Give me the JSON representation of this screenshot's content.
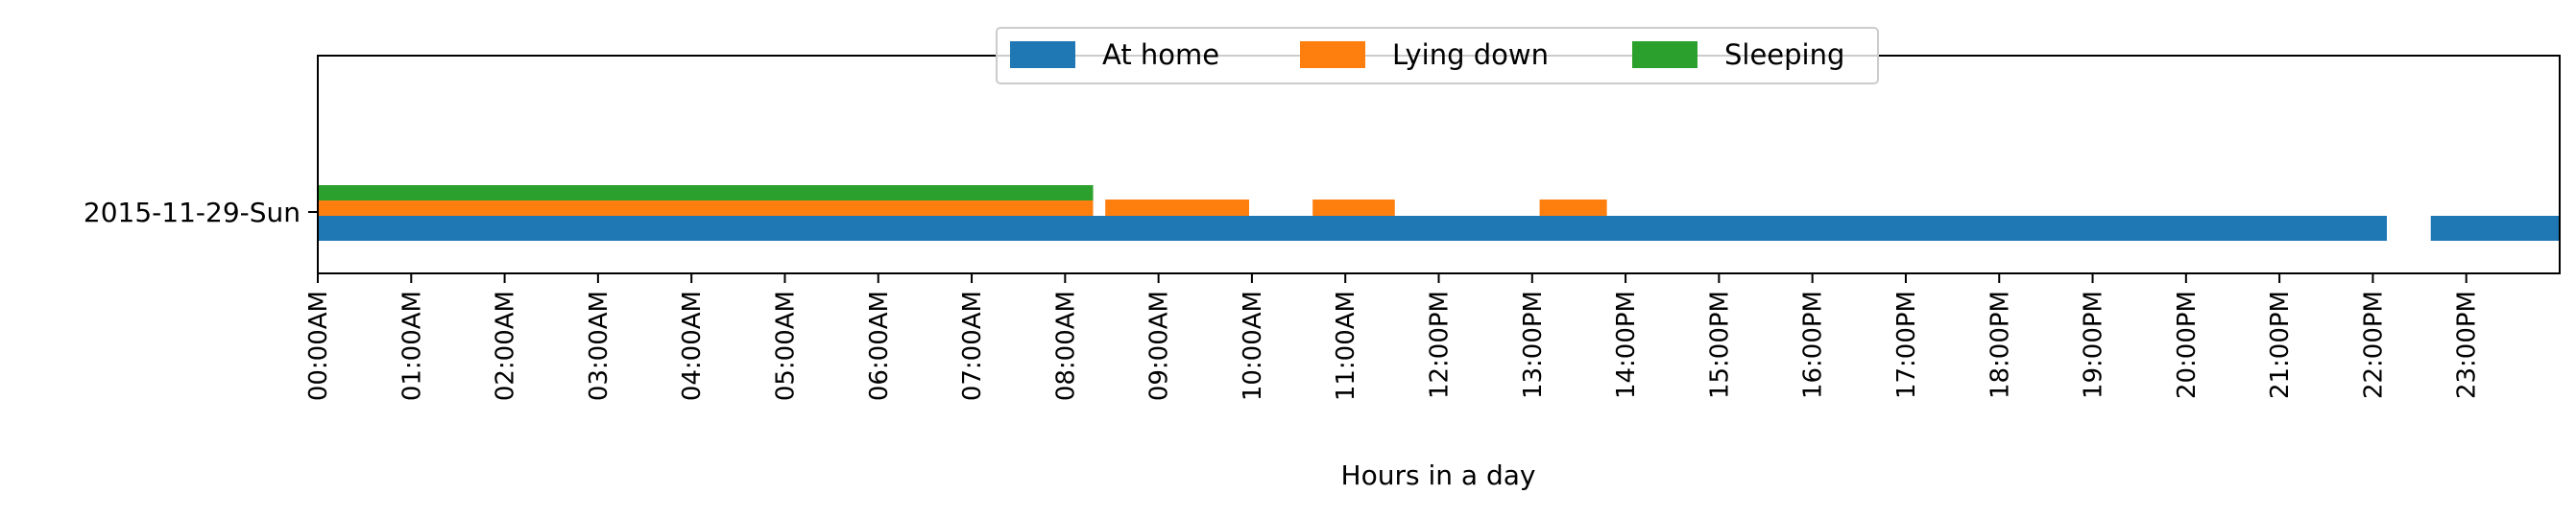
{
  "chart_data": {
    "type": "timeline",
    "title": "",
    "xlabel": "Hours in a day",
    "ylabel": "",
    "xlim": [
      0,
      24
    ],
    "grid": false,
    "legend_position": "top-center",
    "categories": [
      "2015-11-29-Sun"
    ],
    "x_ticks": [
      {
        "value": 0,
        "label": "00:00AM"
      },
      {
        "value": 1,
        "label": "01:00AM"
      },
      {
        "value": 2,
        "label": "02:00AM"
      },
      {
        "value": 3,
        "label": "03:00AM"
      },
      {
        "value": 4,
        "label": "04:00AM"
      },
      {
        "value": 5,
        "label": "05:00AM"
      },
      {
        "value": 6,
        "label": "06:00AM"
      },
      {
        "value": 7,
        "label": "07:00AM"
      },
      {
        "value": 8,
        "label": "08:00AM"
      },
      {
        "value": 9,
        "label": "09:00AM"
      },
      {
        "value": 10,
        "label": "10:00AM"
      },
      {
        "value": 11,
        "label": "11:00AM"
      },
      {
        "value": 12,
        "label": "12:00PM"
      },
      {
        "value": 13,
        "label": "13:00PM"
      },
      {
        "value": 14,
        "label": "14:00PM"
      },
      {
        "value": 15,
        "label": "15:00PM"
      },
      {
        "value": 16,
        "label": "16:00PM"
      },
      {
        "value": 17,
        "label": "17:00PM"
      },
      {
        "value": 18,
        "label": "18:00PM"
      },
      {
        "value": 19,
        "label": "19:00PM"
      },
      {
        "value": 20,
        "label": "20:00PM"
      },
      {
        "value": 21,
        "label": "21:00PM"
      },
      {
        "value": 22,
        "label": "22:00PM"
      },
      {
        "value": 23,
        "label": "23:00PM"
      }
    ],
    "series": [
      {
        "name": "At home",
        "color": "#1f77b4",
        "intervals": [
          [
            0.0,
            22.15
          ],
          [
            22.62,
            24.0
          ]
        ]
      },
      {
        "name": "Lying down",
        "color": "#ff7f0e",
        "intervals": [
          [
            0.0,
            8.3
          ],
          [
            8.43,
            9.97
          ],
          [
            10.65,
            11.53
          ],
          [
            13.08,
            13.8
          ]
        ]
      },
      {
        "name": "Sleeping",
        "color": "#2ca02c",
        "intervals": [
          [
            0.0,
            8.3
          ]
        ]
      }
    ]
  }
}
